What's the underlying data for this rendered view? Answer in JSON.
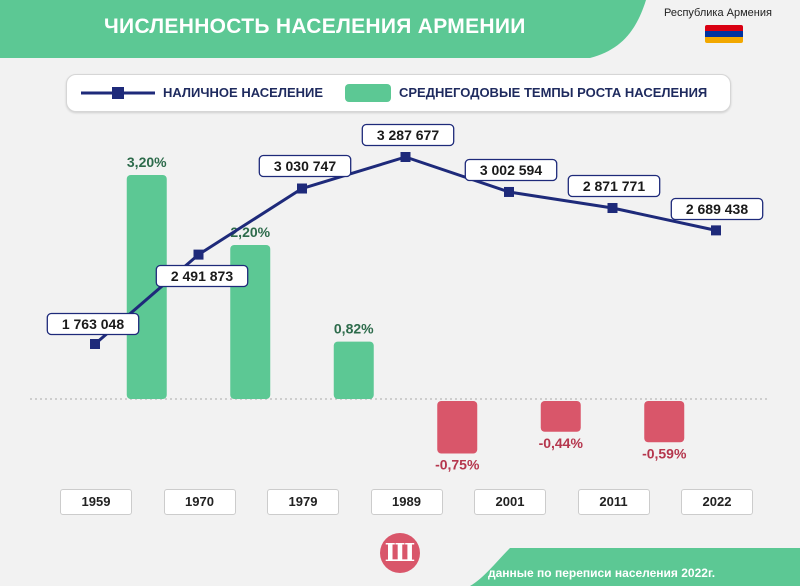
{
  "header": {
    "title": "ЧИСЛЕННОСТЬ НАСЕЛЕНИЯ АРМЕНИИ",
    "country_label": "Республика Армения",
    "flag_colors": [
      "#d90012",
      "#0033a0",
      "#f2a800"
    ]
  },
  "legend": {
    "line_label": "НАЛИЧНОЕ НАСЕЛЕНИЕ",
    "bar_label": "СРЕДНЕГОДОВЫЕ ТЕМПЫ РОСТА НАСЕЛЕНИЯ"
  },
  "chart_data": {
    "type": "bar+line",
    "categories": [
      "1959",
      "1970",
      "1979",
      "1989",
      "2001",
      "2011",
      "2022"
    ],
    "line_series": {
      "name": "НАЛИЧНОЕ НАСЕЛЕНИЕ",
      "values": [
        1763048,
        2491873,
        3030747,
        3287677,
        3002594,
        2871771,
        2689438
      ],
      "labels": [
        "1 763 048",
        "2 491 873",
        "3 030 747",
        "3 287 677",
        "3 002 594",
        "2 871 771",
        "2 689 438"
      ],
      "color": "#1e2a7a"
    },
    "bar_series": {
      "name": "СРЕДНЕГОДОВЫЕ ТЕМПЫ РОСТА НАСЕЛЕНИЯ",
      "values": [
        3.2,
        2.2,
        0.82,
        -0.75,
        -0.44,
        -0.59
      ],
      "labels": [
        "3,20%",
        "2,20%",
        "0,82%",
        "-0,75%",
        "-0,44%",
        "-0,59%"
      ],
      "positive_color": "#5cc894",
      "negative_color": "#d9566a"
    }
  },
  "footer": {
    "logo_letter": "Ш",
    "source_text": "данные по переписи населения 2022г."
  },
  "colors": {
    "green": "#5cc894",
    "red": "#d9566a",
    "navy": "#1e2a7a",
    "background": "#f2f2f2"
  }
}
